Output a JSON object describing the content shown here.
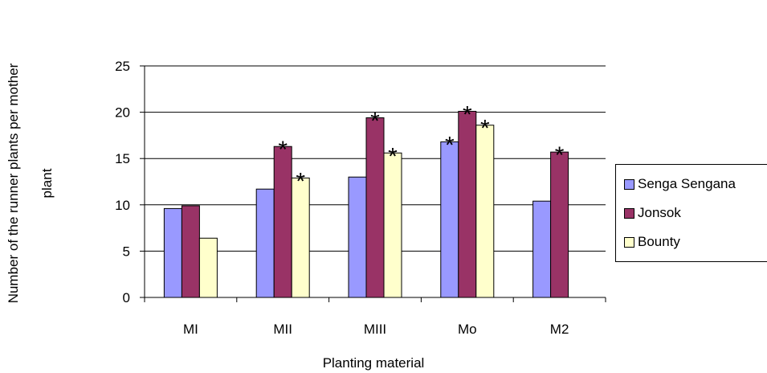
{
  "chart_data": {
    "type": "bar",
    "title": "",
    "xlabel": "Planting material",
    "ylabel": "Number of the runner plants per mother plant",
    "ylim": [
      0,
      25
    ],
    "yticks": [
      "0",
      "5",
      "10",
      "15",
      "20",
      "25"
    ],
    "categories": [
      "MI",
      "MII",
      "MIII",
      "Mo",
      "M2"
    ],
    "series": [
      {
        "name": "Senga Sengana",
        "color": "#9999ff",
        "values": [
          9.6,
          11.7,
          13.0,
          16.8,
          10.4
        ],
        "marks": [
          "",
          "",
          "",
          "*",
          ""
        ]
      },
      {
        "name": "Jonsok",
        "color": "#993366",
        "values": [
          9.9,
          16.3,
          19.4,
          20.1,
          15.7
        ],
        "marks": [
          "",
          "*",
          "*",
          "*",
          "*"
        ]
      },
      {
        "name": "Bounty",
        "color": "#ffffcc",
        "values": [
          6.4,
          12.9,
          15.6,
          18.6,
          null
        ],
        "marks": [
          "",
          "*",
          "*",
          "*",
          ""
        ]
      }
    ],
    "grid": true,
    "legend_position": "right"
  }
}
